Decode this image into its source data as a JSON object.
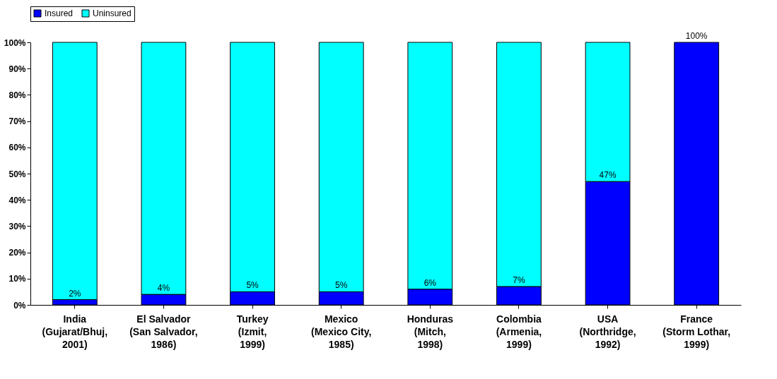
{
  "chart_data": {
    "type": "bar",
    "stacked": true,
    "legend": "top left",
    "categories": [
      "India\n(Gujarat/Bhuj,\n2001)",
      "El Salvador\n(San Salvador,\n1986)",
      "Turkey\n(Izmit,\n1999)",
      "Mexico\n(Mexico City,\n1985)",
      "Honduras\n(Mitch,\n1998)",
      "Colombia\n(Armenia,\n1999)",
      "USA\n(Northridge,\n1992)",
      "France\n(Storm Lothar,\n1999)"
    ],
    "series": [
      {
        "name": "Insured",
        "color": "#0000ff",
        "values": [
          2,
          4,
          5,
          5,
          6,
          7,
          47,
          100
        ],
        "value_labels": [
          "2%",
          "4%",
          "5%",
          "5%",
          "6%",
          "7%",
          "47%",
          "100%"
        ]
      },
      {
        "name": "Uninsured",
        "color": "#00ffff",
        "values": [
          98,
          96,
          95,
          95,
          94,
          93,
          53,
          0
        ]
      }
    ],
    "ylim": [
      0,
      100
    ],
    "yticks": [
      {
        "value": 0,
        "label": "0%"
      },
      {
        "value": 10,
        "label": "10%"
      },
      {
        "value": 20,
        "label": "20%"
      },
      {
        "value": 30,
        "label": "30%"
      },
      {
        "value": 40,
        "label": "40%"
      },
      {
        "value": 50,
        "label": "50%"
      },
      {
        "value": 60,
        "label": "60%"
      },
      {
        "value": 70,
        "label": "70%"
      },
      {
        "value": 80,
        "label": "80%"
      },
      {
        "value": 90,
        "label": "90%"
      },
      {
        "value": 100,
        "label": "100%"
      }
    ],
    "grid": false
  }
}
